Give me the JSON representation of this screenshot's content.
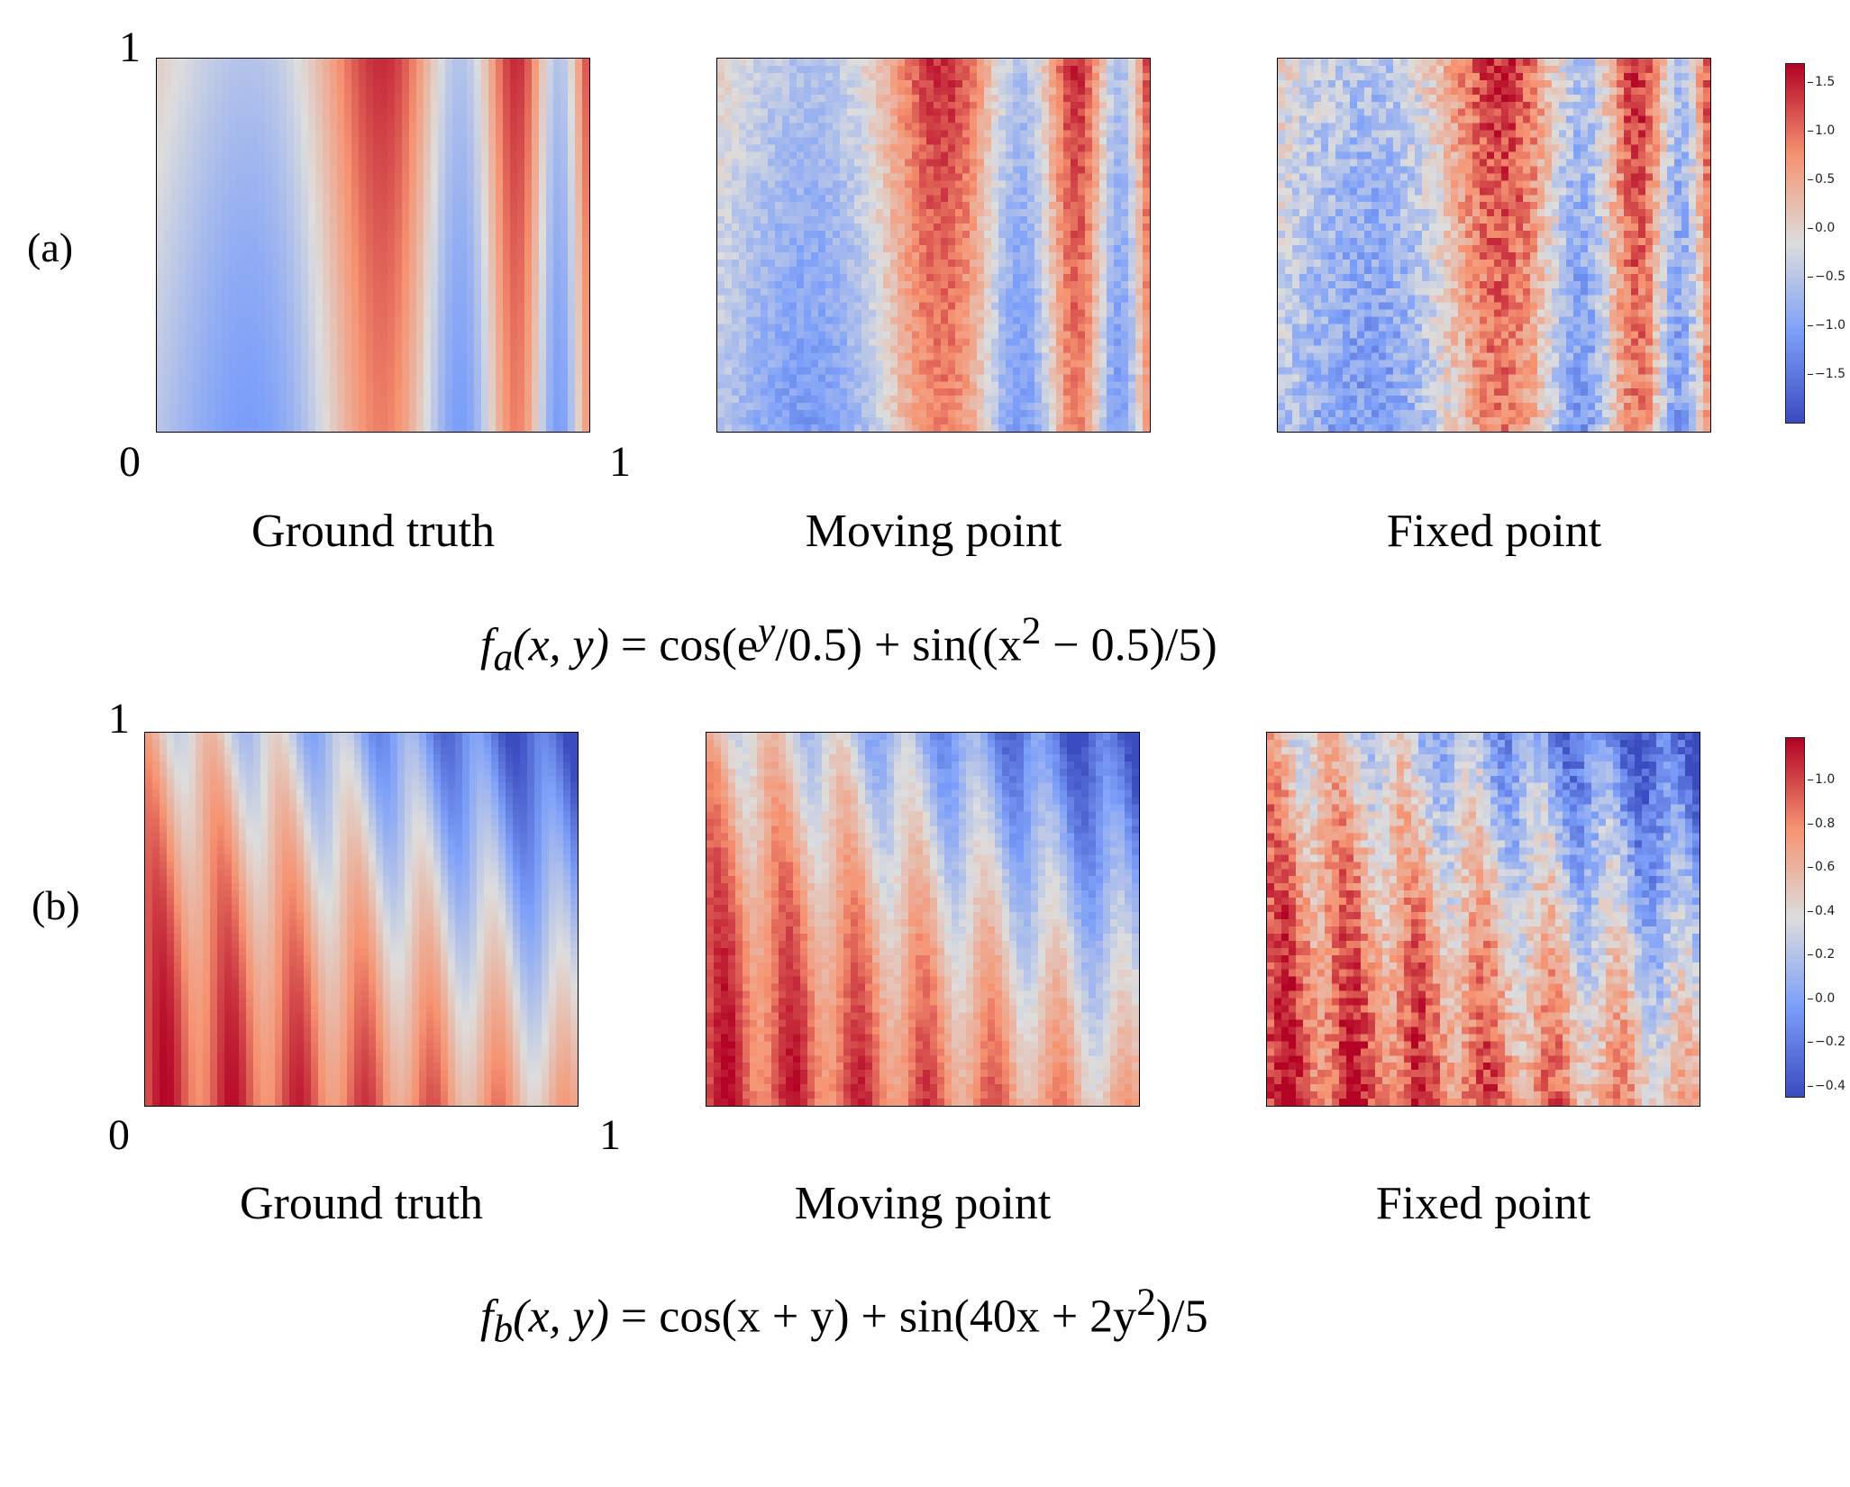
{
  "rows": [
    {
      "label": "(a)",
      "tick_y_top": "1",
      "tick_origin": "0",
      "tick_x_right": "1",
      "captions": [
        "Ground truth",
        "Moving point",
        "Fixed point"
      ],
      "formula": {
        "lhs": "f",
        "sub": "a",
        "args": "(x, y)",
        "rhs": " = cos(e",
        "sup": "y",
        "rest": "/0.5) + sin((x",
        "sup2": "2",
        "rest2": " − 0.5)/5)"
      },
      "colorbar_ticks": [
        "1.5",
        "1.0",
        "0.5",
        "0.0",
        "−0.5",
        "−1.0",
        "−1.5"
      ]
    },
    {
      "label": "(b)",
      "tick_y_top": "1",
      "tick_origin": "0",
      "tick_x_right": "1",
      "captions": [
        "Ground truth",
        "Moving point",
        "Fixed point"
      ],
      "formula": {
        "lhs": "f",
        "sub": "b",
        "args": "(x, y)",
        "rhs": " = cos(x + y) + sin(40x + 2y",
        "sup": "2",
        "rest": ")/5",
        "sup2": "",
        "rest2": ""
      },
      "colorbar_ticks": [
        "1.0",
        "0.8",
        "0.6",
        "0.4",
        "0.2",
        "0.0",
        "−0.2",
        "−0.4"
      ]
    }
  ],
  "chart_data": [
    {
      "type": "heatmap",
      "title": "Ground truth",
      "function": "fa(x,y) = cos(e^y/0.5) + sin((x^2 - 0.5)/5)",
      "xlim": [
        0,
        1
      ],
      "ylim": [
        0,
        1
      ],
      "colormap": "coolwarm",
      "colorbar_range": [
        -2.0,
        1.7
      ],
      "colorbar_ticks": [
        1.5,
        1.0,
        0.5,
        0.0,
        -0.5,
        -1.0,
        -1.5
      ]
    },
    {
      "type": "heatmap",
      "title": "Moving point",
      "function": "fa",
      "xlim": [
        0,
        1
      ],
      "ylim": [
        0,
        1
      ],
      "colormap": "coolwarm"
    },
    {
      "type": "heatmap",
      "title": "Fixed point",
      "function": "fa",
      "xlim": [
        0,
        1
      ],
      "ylim": [
        0,
        1
      ],
      "colormap": "coolwarm"
    },
    {
      "type": "heatmap",
      "title": "Ground truth",
      "function": "fb(x,y) = cos(x + y) + sin(40x + 2y^2)/5",
      "xlim": [
        0,
        1
      ],
      "ylim": [
        0,
        1
      ],
      "colormap": "coolwarm",
      "colorbar_range": [
        -0.45,
        1.2
      ],
      "colorbar_ticks": [
        1.0,
        0.8,
        0.6,
        0.4,
        0.2,
        0.0,
        -0.2,
        -0.4
      ]
    },
    {
      "type": "heatmap",
      "title": "Moving point",
      "function": "fb",
      "xlim": [
        0,
        1
      ],
      "ylim": [
        0,
        1
      ],
      "colormap": "coolwarm"
    },
    {
      "type": "heatmap",
      "title": "Fixed point",
      "function": "fb",
      "xlim": [
        0,
        1
      ],
      "ylim": [
        0,
        1
      ],
      "colormap": "coolwarm"
    }
  ]
}
